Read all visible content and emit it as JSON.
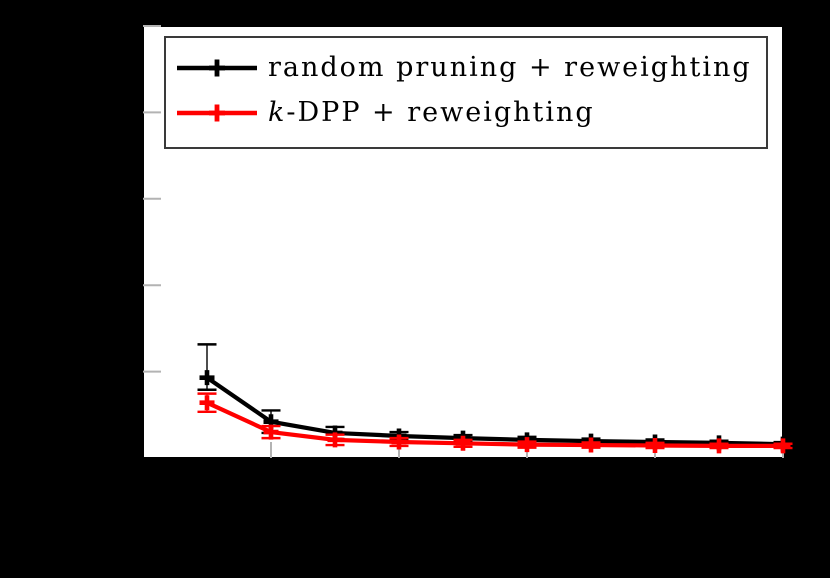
{
  "figure": {
    "background_color": "#000000",
    "plot_background_color": "#ffffff",
    "tick_color": "#b3b3b3",
    "legend_border_color": "#3a3a3a"
  },
  "chart_data": {
    "type": "line",
    "title": "",
    "xlabel": "",
    "ylabel": "",
    "grid": false,
    "legend_position": "top-center",
    "xlim": [
      0,
      1
    ],
    "ylim": [
      0,
      1
    ],
    "xticks": [
      0,
      0.2,
      0.4,
      0.6,
      0.8,
      1.0
    ],
    "yticks": [
      0,
      0.2,
      0.4,
      0.6,
      0.8,
      1.0
    ],
    "tick_color": "#b3b3b3",
    "x": [
      0.1,
      0.2,
      0.3,
      0.4,
      0.5,
      0.6,
      0.7,
      0.8,
      0.9,
      1.0
    ],
    "series": [
      {
        "name": "random pruning + reweighting",
        "color": "#000000",
        "y": [
          0.186,
          0.084,
          0.058,
          0.051,
          0.046,
          0.042,
          0.039,
          0.037,
          0.035,
          0.032
        ],
        "err_plus": [
          0.077,
          0.026,
          0.014,
          0.009,
          0.007,
          0.007,
          0.006,
          0.006,
          0.005,
          0.005
        ],
        "err_minus": [
          0.028,
          0.026,
          0.014,
          0.009,
          0.007,
          0.007,
          0.006,
          0.006,
          0.005,
          0.005
        ]
      },
      {
        "name": "k-DPP + reweighting",
        "color": "#ff0000",
        "y": [
          0.128,
          0.06,
          0.042,
          0.037,
          0.034,
          0.031,
          0.03,
          0.029,
          0.028,
          0.028
        ],
        "err_plus": [
          0.021,
          0.014,
          0.012,
          0.009,
          0.008,
          0.007,
          0.006,
          0.006,
          0.005,
          0.005
        ],
        "err_minus": [
          0.021,
          0.014,
          0.012,
          0.009,
          0.008,
          0.007,
          0.006,
          0.006,
          0.005,
          0.005
        ]
      }
    ],
    "legend": {
      "entries": [
        {
          "italic_prefix": "",
          "label": "random pruning + reweighting",
          "color": "#000000"
        },
        {
          "italic_prefix": "k",
          "label": "-DPP + reweighting",
          "color": "#ff0000"
        }
      ]
    }
  }
}
